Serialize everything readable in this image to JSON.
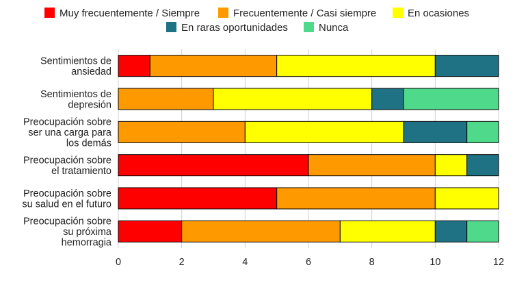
{
  "chart_data": {
    "type": "bar",
    "orientation": "horizontal",
    "stacked": true,
    "title": "",
    "xlabel": "",
    "ylabel": "",
    "xlim": [
      0,
      12
    ],
    "xticks": [
      "0",
      "2",
      "4",
      "6",
      "8",
      "10",
      "12"
    ],
    "grid": "vertical",
    "legend_position": "top",
    "categories": [
      [
        "Sentimientos de",
        "ansiedad"
      ],
      [
        "Sentimientos de",
        "depresión"
      ],
      [
        "Preocupación sobre",
        "ser una carga para",
        "los demás"
      ],
      [
        "Preocupación sobre",
        "el tratamiento"
      ],
      [
        "Preocupación sobre",
        "su salud en el futuro"
      ],
      [
        "Preocupación sobre",
        "su próxima",
        "hemorragia"
      ]
    ],
    "series": [
      {
        "name": "Muy frecuentemente / Siempre",
        "color": "#ff0000",
        "values": [
          1,
          0,
          0,
          6,
          5,
          2
        ]
      },
      {
        "name": "Frecuentemente / Casi siempre",
        "color": "#ff9900",
        "values": [
          4,
          3,
          4,
          4,
          5,
          5
        ]
      },
      {
        "name": "En ocasiones",
        "color": "#ffff00",
        "values": [
          5,
          5,
          5,
          1,
          2,
          3
        ]
      },
      {
        "name": "En raras oportunidades",
        "color": "#1f7283",
        "values": [
          2,
          1,
          2,
          1,
          0,
          1
        ]
      },
      {
        "name": "Nunca",
        "color": "#4fd98a",
        "values": [
          0,
          3,
          1,
          0,
          0,
          1
        ]
      }
    ]
  }
}
